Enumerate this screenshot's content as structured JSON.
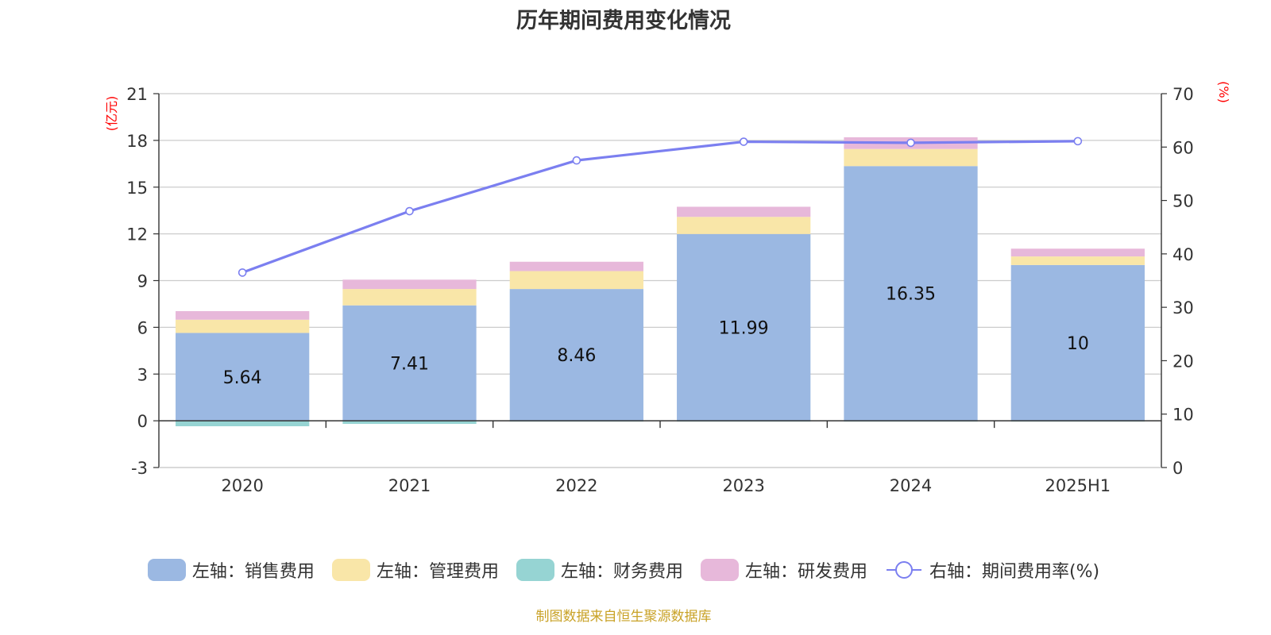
{
  "chart_data": {
    "type": "bar",
    "title": "历年期间费用变化情况",
    "categories": [
      "2020",
      "2021",
      "2022",
      "2023",
      "2024",
      "2025H1"
    ],
    "left_axis": {
      "unit": "(亿元)",
      "ylim": [
        -3,
        21
      ],
      "ticks": [
        -3,
        0,
        3,
        6,
        9,
        12,
        15,
        18,
        21
      ]
    },
    "right_axis": {
      "unit": "(%)",
      "ylim": [
        0,
        70
      ],
      "ticks": [
        0,
        10,
        20,
        30,
        40,
        50,
        60,
        70
      ]
    },
    "series": [
      {
        "name": "左轴：销售费用",
        "type": "bar",
        "stack": true,
        "axis": "left",
        "color": "#9bb8e2",
        "values": [
          5.64,
          7.41,
          8.46,
          11.99,
          16.35,
          10
        ],
        "show_labels": true
      },
      {
        "name": "左轴：管理费用",
        "type": "bar",
        "stack": true,
        "axis": "left",
        "color": "#f9e6a8",
        "values": [
          0.85,
          1.05,
          1.15,
          1.1,
          1.1,
          0.55
        ]
      },
      {
        "name": "左轴：财务费用",
        "type": "bar",
        "stack": true,
        "axis": "left",
        "color": "#96d4d3",
        "values": [
          -0.35,
          -0.2,
          -0.05,
          -0.05,
          -0.05,
          -0.02
        ]
      },
      {
        "name": "左轴：研发费用",
        "type": "bar",
        "stack": true,
        "axis": "left",
        "color": "#e7b8da",
        "values": [
          0.55,
          0.6,
          0.6,
          0.65,
          0.75,
          0.5
        ]
      },
      {
        "name": "右轴：期间费用率(%)",
        "type": "line",
        "axis": "right",
        "color": "#7b7ff0",
        "values": [
          36.5,
          48,
          57.5,
          61,
          60.8,
          61.1
        ]
      }
    ],
    "grid": true,
    "legend_position": "bottom"
  },
  "source_note": "制图数据来自恒生聚源数据库"
}
